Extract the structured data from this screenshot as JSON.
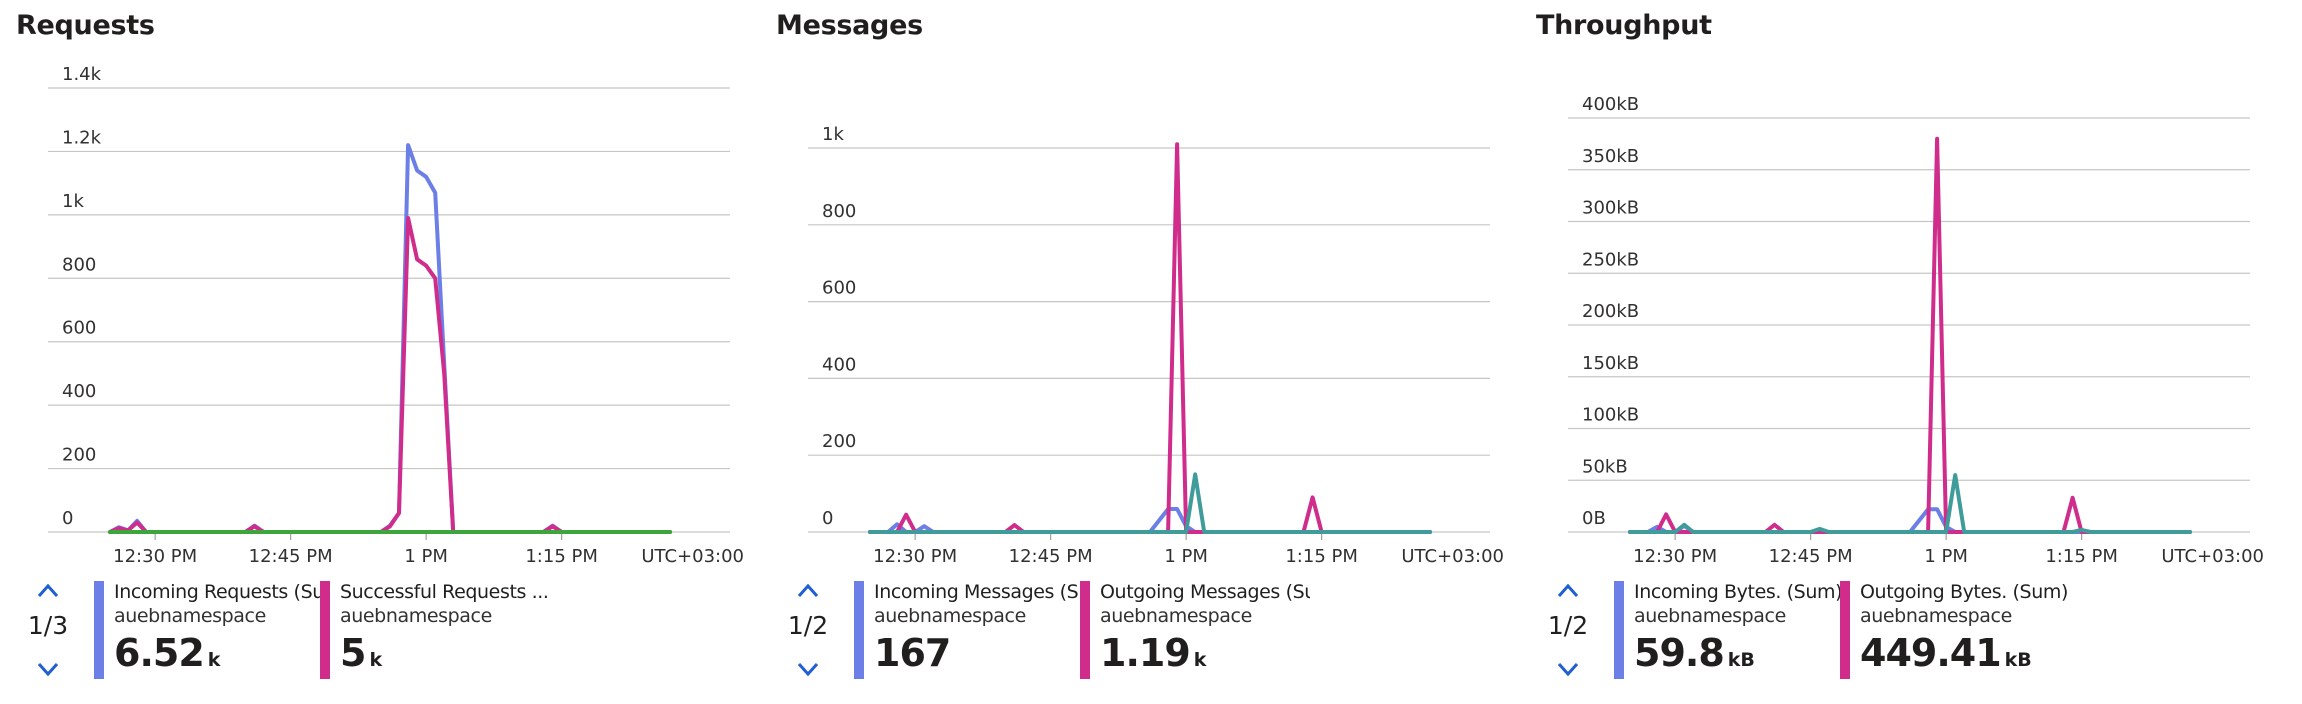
{
  "panels": [
    {
      "title": "Requests",
      "pager": "1/3",
      "timezone": "UTC+03:00",
      "legend": [
        {
          "name": "Incoming Requests (Sum)",
          "resource": "auebnamespace",
          "value": "6.52",
          "unit": "k",
          "color": "#6b7fe6"
        },
        {
          "name": "Successful Requests ...",
          "resource": "auebnamespace",
          "value": "5",
          "unit": "k",
          "color": "#cf2c8c"
        }
      ]
    },
    {
      "title": "Messages",
      "pager": "1/2",
      "timezone": "UTC+03:00",
      "legend": [
        {
          "name": "Incoming Messages (Sum)",
          "resource": "auebnamespace",
          "value": "167",
          "unit": "",
          "color": "#6b7fe6"
        },
        {
          "name": "Outgoing Messages (Sum)",
          "resource": "auebnamespace",
          "value": "1.19",
          "unit": "k",
          "color": "#cf2c8c"
        }
      ]
    },
    {
      "title": "Throughput",
      "pager": "1/2",
      "timezone": "UTC+03:00",
      "legend": [
        {
          "name": "Incoming Bytes. (Sum)",
          "resource": "auebnamespace",
          "value": "59.8",
          "unit": "kB",
          "color": "#6b7fe6"
        },
        {
          "name": "Outgoing Bytes. (Sum)",
          "resource": "auebnamespace",
          "value": "449.41",
          "unit": "kB",
          "color": "#cf2c8c"
        }
      ]
    }
  ],
  "chart_data": [
    {
      "type": "line",
      "title": "Requests",
      "xlabel": "",
      "ylabel": "",
      "x_ticks": [
        "12:30 PM",
        "12:45 PM",
        "1 PM",
        "1:15 PM"
      ],
      "y_ticks": [
        "0",
        "200",
        "400",
        "600",
        "800",
        "1k",
        "1.2k",
        "1.4k"
      ],
      "ylim": [
        0,
        1400
      ],
      "xlim": [
        "12:25 PM",
        "1:27 PM"
      ],
      "grid": true,
      "series": [
        {
          "name": "Incoming Requests (Sum)",
          "color": "#6b7fe6",
          "x": [
            "12:25 PM",
            "12:26 PM",
            "12:27 PM",
            "12:28 PM",
            "12:29 PM",
            "12:30 PM",
            "12:40 PM",
            "12:41 PM",
            "12:42 PM",
            "12:55 PM",
            "12:56 PM",
            "12:57 PM",
            "12:58 PM",
            "12:59 PM",
            "1:00 PM",
            "1:01 PM",
            "1:02 PM",
            "1:03 PM",
            "1:04 PM",
            "1:05 PM",
            "1:13 PM",
            "1:14 PM",
            "1:15 PM",
            "1:27 PM"
          ],
          "values": [
            0,
            15,
            5,
            35,
            0,
            0,
            0,
            20,
            0,
            0,
            20,
            60,
            1220,
            1140,
            1120,
            1070,
            530,
            0,
            0,
            0,
            0,
            20,
            0,
            0
          ]
        },
        {
          "name": "Successful Requests (Sum)",
          "color": "#cf2c8c",
          "x": [
            "12:25 PM",
            "12:26 PM",
            "12:27 PM",
            "12:28 PM",
            "12:29 PM",
            "12:30 PM",
            "12:40 PM",
            "12:41 PM",
            "12:42 PM",
            "12:55 PM",
            "12:56 PM",
            "12:57 PM",
            "12:58 PM",
            "12:59 PM",
            "1:00 PM",
            "1:01 PM",
            "1:02 PM",
            "1:03 PM",
            "1:04 PM",
            "1:05 PM",
            "1:13 PM",
            "1:14 PM",
            "1:15 PM",
            "1:27 PM"
          ],
          "values": [
            0,
            12,
            5,
            30,
            0,
            0,
            0,
            18,
            0,
            0,
            18,
            60,
            990,
            860,
            840,
            800,
            500,
            0,
            0,
            0,
            0,
            18,
            0,
            0
          ]
        },
        {
          "name": "",
          "color": "#3ca53c",
          "x": [
            "12:25 PM",
            "1:27 PM"
          ],
          "values": [
            0,
            0
          ]
        }
      ]
    },
    {
      "type": "line",
      "title": "Messages",
      "xlabel": "",
      "ylabel": "",
      "x_ticks": [
        "12:30 PM",
        "12:45 PM",
        "1 PM",
        "1:15 PM"
      ],
      "y_ticks": [
        "0",
        "200",
        "400",
        "600",
        "800",
        "1k"
      ],
      "ylim": [
        0,
        1000
      ],
      "xlim": [
        "12:25 PM",
        "1:27 PM"
      ],
      "grid": true,
      "series": [
        {
          "name": "Incoming Messages (Sum)",
          "color": "#6b7fe6",
          "x": [
            "12:25 PM",
            "12:27 PM",
            "12:28 PM",
            "12:29 PM",
            "12:30 PM",
            "12:31 PM",
            "12:32 PM",
            "12:56 PM",
            "12:58 PM",
            "12:59 PM",
            "1:00 PM",
            "1:01 PM",
            "1:27 PM"
          ],
          "values": [
            0,
            0,
            20,
            0,
            0,
            15,
            0,
            0,
            60,
            60,
            15,
            0,
            0
          ]
        },
        {
          "name": "Outgoing Messages (Sum)",
          "color": "#cf2c8c",
          "x": [
            "12:25 PM",
            "12:28 PM",
            "12:29 PM",
            "12:30 PM",
            "12:40 PM",
            "12:41 PM",
            "12:42 PM",
            "12:58 PM",
            "12:59 PM",
            "1:00 PM",
            "1:13 PM",
            "1:14 PM",
            "1:15 PM",
            "1:27 PM"
          ],
          "values": [
            0,
            0,
            45,
            0,
            0,
            18,
            0,
            0,
            1010,
            0,
            0,
            90,
            0,
            0
          ]
        },
        {
          "name": "",
          "color": "#3f9c9a",
          "x": [
            "12:25 PM",
            "1:00 PM",
            "1:01 PM",
            "1:02 PM",
            "1:27 PM"
          ],
          "values": [
            0,
            0,
            150,
            0,
            0
          ]
        }
      ]
    },
    {
      "type": "line",
      "title": "Throughput",
      "xlabel": "",
      "ylabel": "",
      "x_ticks": [
        "12:30 PM",
        "12:45 PM",
        "1 PM",
        "1:15 PM"
      ],
      "y_ticks": [
        "0B",
        "50kB",
        "100kB",
        "150kB",
        "200kB",
        "250kB",
        "300kB",
        "350kB",
        "400kB"
      ],
      "ylim": [
        0,
        400
      ],
      "y_unit": "kB",
      "xlim": [
        "12:25 PM",
        "1:27 PM"
      ],
      "grid": true,
      "series": [
        {
          "name": "Incoming Bytes. (Sum)",
          "color": "#6b7fe6",
          "x": [
            "12:25 PM",
            "12:27 PM",
            "12:28 PM",
            "12:29 PM",
            "12:30 PM",
            "12:31 PM",
            "12:32 PM",
            "12:56 PM",
            "12:58 PM",
            "12:59 PM",
            "1:00 PM",
            "1:01 PM",
            "1:27 PM"
          ],
          "values": [
            0,
            0,
            5,
            0,
            0,
            6,
            0,
            0,
            22,
            22,
            5,
            0,
            0
          ]
        },
        {
          "name": "Outgoing Bytes. (Sum)",
          "color": "#cf2c8c",
          "x": [
            "12:25 PM",
            "12:28 PM",
            "12:29 PM",
            "12:30 PM",
            "12:40 PM",
            "12:41 PM",
            "12:42 PM",
            "12:58 PM",
            "12:59 PM",
            "1:00 PM",
            "1:13 PM",
            "1:14 PM",
            "1:15 PM",
            "1:27 PM"
          ],
          "values": [
            0,
            0,
            17,
            0,
            0,
            7,
            0,
            0,
            380,
            0,
            0,
            33,
            0,
            0
          ]
        },
        {
          "name": "",
          "color": "#3f9c9a",
          "x": [
            "12:25 PM",
            "12:30 PM",
            "12:31 PM",
            "12:32 PM",
            "12:45 PM",
            "12:46 PM",
            "12:47 PM",
            "1:00 PM",
            "1:01 PM",
            "1:02 PM",
            "1:14 PM",
            "1:15 PM",
            "1:16 PM",
            "1:27 PM"
          ],
          "values": [
            0,
            0,
            7,
            0,
            0,
            3,
            0,
            0,
            55,
            0,
            0,
            2,
            0,
            0
          ]
        }
      ]
    }
  ]
}
